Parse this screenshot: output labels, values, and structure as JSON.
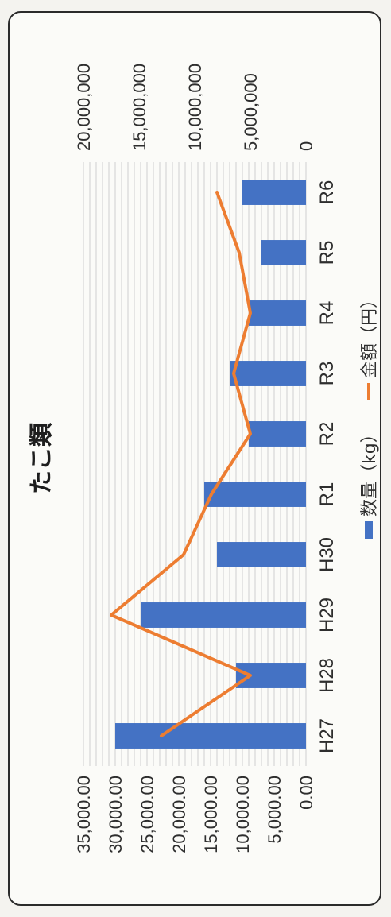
{
  "chart_data": {
    "type": "bar",
    "title": "たこ類",
    "categories": [
      "H27",
      "H28",
      "H29",
      "H30",
      "R1",
      "R2",
      "R3",
      "R4",
      "R5",
      "R6"
    ],
    "series": [
      {
        "name": "数量（kg）",
        "type": "bar",
        "axis": "primary",
        "color": "#4472c4",
        "values": [
          30000,
          11000,
          26000,
          14000,
          16000,
          9000,
          12000,
          9000,
          7000,
          10000
        ]
      },
      {
        "name": "金額（円）",
        "type": "line",
        "axis": "secondary",
        "color": "#ed7d31",
        "values": [
          13000000,
          5000000,
          17500000,
          11000000,
          8500000,
          5000000,
          6500000,
          5000000,
          6000000,
          8000000
        ]
      }
    ],
    "primary_axis": {
      "ticks": [
        "0.00",
        "5,000.00",
        "10,000.00",
        "15,000.00",
        "20,000.00",
        "25,000.00",
        "30,000.00",
        "35,000.00"
      ],
      "range": [
        0,
        35000
      ]
    },
    "secondary_axis": {
      "ticks": [
        "0",
        "5,000,000",
        "10,000,000",
        "15,000,000",
        "20,000,000"
      ],
      "range": [
        0,
        20000000
      ]
    },
    "grid": true,
    "legend_position": "bottom"
  }
}
